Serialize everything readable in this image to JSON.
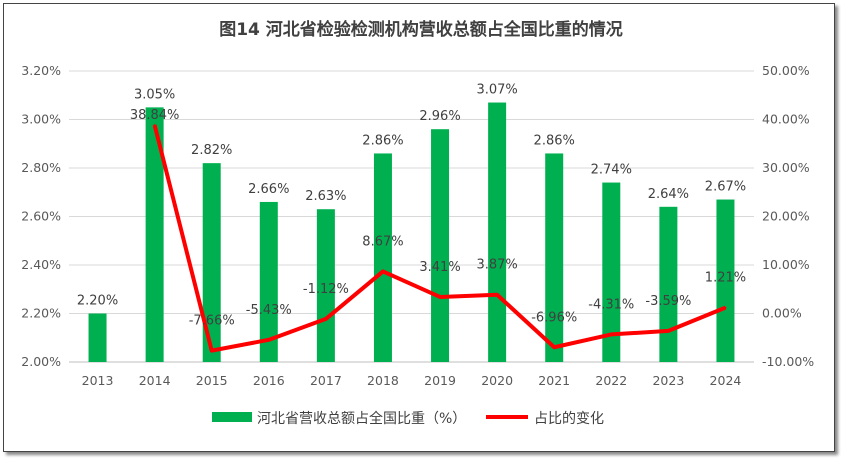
{
  "chart_data": {
    "type": "bar+line",
    "title": "图14  河北省检验检测机构营收总额占全国比重的情况",
    "categories": [
      "2013",
      "2014",
      "2015",
      "2016",
      "2017",
      "2018",
      "2019",
      "2020",
      "2021",
      "2022",
      "2023",
      "2024"
    ],
    "series": [
      {
        "name": "河北省营收总额占全国比重（%）",
        "type": "bar",
        "axis": "left",
        "color": "#00B050",
        "values": [
          2.2,
          3.05,
          2.82,
          2.66,
          2.63,
          2.86,
          2.96,
          3.07,
          2.86,
          2.74,
          2.64,
          2.67
        ],
        "labels": [
          "2.20%",
          "3.05%",
          "2.82%",
          "2.66%",
          "2.63%",
          "2.86%",
          "2.96%",
          "3.07%",
          "2.86%",
          "2.74%",
          "2.64%",
          "2.67%"
        ]
      },
      {
        "name": "占比的变化",
        "type": "line",
        "axis": "right",
        "color": "#FF0000",
        "values": [
          null,
          38.84,
          -7.66,
          -5.43,
          -1.12,
          8.67,
          3.41,
          3.87,
          -6.96,
          -4.31,
          -3.59,
          1.21
        ],
        "labels": [
          "",
          "38.84%",
          "-7.66%",
          "-5.43%",
          "-1.12%",
          "8.67%",
          "3.41%",
          "3.87%",
          "-6.96%",
          "-4.31%",
          "-3.59%",
          "1.21%"
        ]
      }
    ],
    "left_axis": {
      "ylim": [
        2.0,
        3.2
      ],
      "ticks": [
        "2.00%",
        "2.20%",
        "2.40%",
        "2.60%",
        "2.80%",
        "3.00%",
        "3.20%"
      ]
    },
    "right_axis": {
      "ylim": [
        -10,
        50
      ],
      "ticks": [
        "-10.00%",
        "0.00%",
        "10.00%",
        "20.00%",
        "30.00%",
        "40.00%",
        "50.00%"
      ]
    },
    "grid": true,
    "legend": "bottom"
  }
}
